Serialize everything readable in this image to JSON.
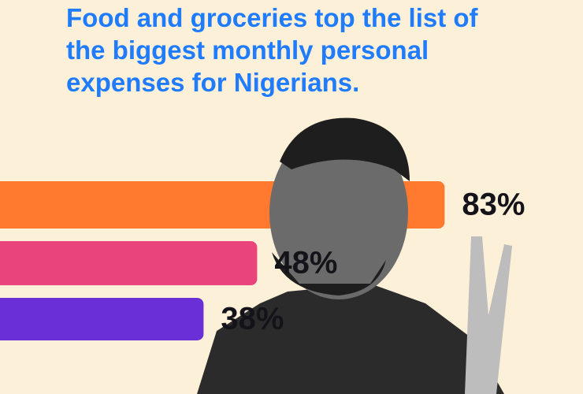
{
  "chart_data": {
    "type": "bar",
    "orientation": "horizontal",
    "title": "Food and groceries top the list of the biggest monthly personal expenses for Nigerians.",
    "values": [
      83,
      48,
      38
    ],
    "value_labels": [
      "83%",
      "48%",
      "38%"
    ],
    "colors": [
      "#ff7a2f",
      "#e9457c",
      "#6a2fd6"
    ]
  }
}
